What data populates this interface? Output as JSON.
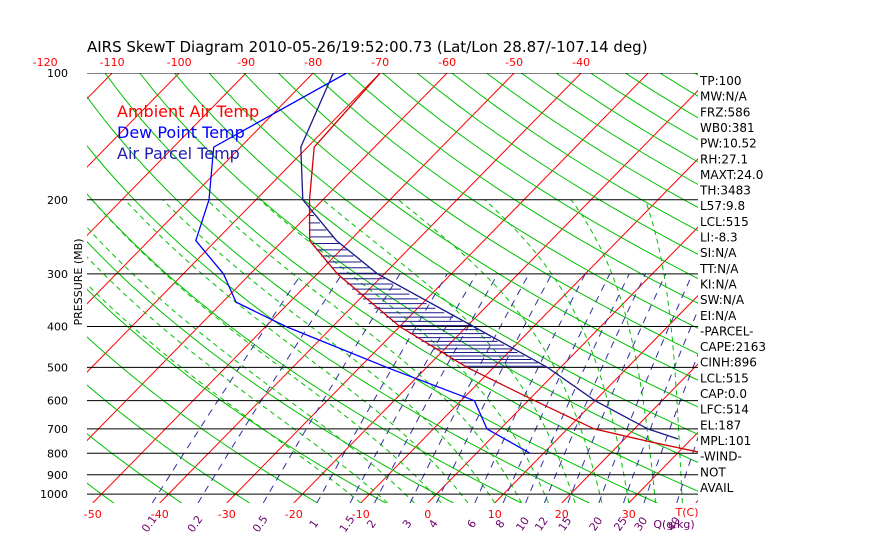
{
  "chart_data": {
    "type": "line",
    "title": "AIRS SkewT Diagram 2010-05-26/19:52:00.73 (Lat/Lon 28.87/-107.14 deg)",
    "ylabel": "PRESSURE (MB)",
    "xlabel_bottom_temp": "T(C)",
    "xlabel_bottom_mixing": "Q(g/kg)",
    "pressure_ticks": [
      100,
      200,
      300,
      400,
      500,
      600,
      700,
      800,
      900,
      1000
    ],
    "top_temp_ticks": [
      -120,
      -110,
      -100,
      -90,
      -80,
      -70,
      -60,
      -50,
      -40
    ],
    "bottom_temp_ticks": [
      -50,
      -40,
      -30,
      -20,
      -10,
      0,
      10,
      20,
      30
    ],
    "mixing_ratio_ticks": [
      "0.1",
      "0.2",
      "0.5",
      "1",
      "1.5",
      "2",
      "3",
      "4",
      "6",
      "8",
      "10",
      "12",
      "15",
      "20",
      "25",
      "30",
      "40"
    ],
    "legend": [
      {
        "label": "Ambient Air Temp",
        "color": "#ff0000"
      },
      {
        "label": "Dew Point Temp",
        "color": "#0000ff"
      },
      {
        "label": "Air Parcel Temp",
        "color": "#2020b0"
      }
    ],
    "series": [
      {
        "name": "Ambient Air Temp",
        "color": "#d00000",
        "points": [
          [
            100,
            -70
          ],
          [
            150,
            -69
          ],
          [
            200,
            -62
          ],
          [
            250,
            -56
          ],
          [
            300,
            -47
          ],
          [
            400,
            -30
          ],
          [
            500,
            -14
          ],
          [
            600,
            1
          ],
          [
            700,
            14
          ],
          [
            750,
            24
          ],
          [
            800,
            34
          ]
        ]
      },
      {
        "name": "Dew Point Temp",
        "color": "#0000ff",
        "points": [
          [
            100,
            -75
          ],
          [
            150,
            -84
          ],
          [
            200,
            -77
          ],
          [
            250,
            -73
          ],
          [
            300,
            -64
          ],
          [
            350,
            -58
          ],
          [
            400,
            -47
          ],
          [
            500,
            -26
          ],
          [
            600,
            -8
          ],
          [
            700,
            -2
          ],
          [
            800,
            8
          ]
        ]
      },
      {
        "name": "Air Parcel Temp",
        "color": "#1a1a8a",
        "points": [
          [
            100,
            -77
          ],
          [
            150,
            -71
          ],
          [
            200,
            -63
          ],
          [
            250,
            -52
          ],
          [
            300,
            -41
          ],
          [
            400,
            -19
          ],
          [
            500,
            -2
          ],
          [
            600,
            10
          ],
          [
            700,
            22
          ],
          [
            740,
            28
          ]
        ]
      }
    ],
    "indices": [
      "TP:100",
      "MW:N/A",
      "FRZ:586",
      "WB0:381",
      "PW:10.52",
      "RH:27.1",
      "MAXT:24.0",
      "TH:3483",
      "L57:9.8",
      "LCL:515",
      "LI:-8.3",
      "SI:N/A",
      "TT:N/A",
      "KI:N/A",
      "SW:N/A",
      "EI:N/A",
      "-PARCEL-",
      "CAPE:2163",
      "CINH:896",
      "LCL:515",
      "CAP:0.0",
      "LFC:514",
      "EL:187",
      "MPL:101",
      "-WIND-",
      "NOT",
      "AVAIL"
    ],
    "colors": {
      "isotherm": "#ff0000",
      "dry_adiabat": "#00c000",
      "moist_adiabat": "#00c000",
      "mixing_ratio": "#3030a0",
      "cape_hatch": "#1a1a8a",
      "isobar": "#000000",
      "top_tick_label": "#ff0000",
      "bottom_tick_label": "#ff0000",
      "mixing_tick_label": "#6a006a"
    }
  }
}
